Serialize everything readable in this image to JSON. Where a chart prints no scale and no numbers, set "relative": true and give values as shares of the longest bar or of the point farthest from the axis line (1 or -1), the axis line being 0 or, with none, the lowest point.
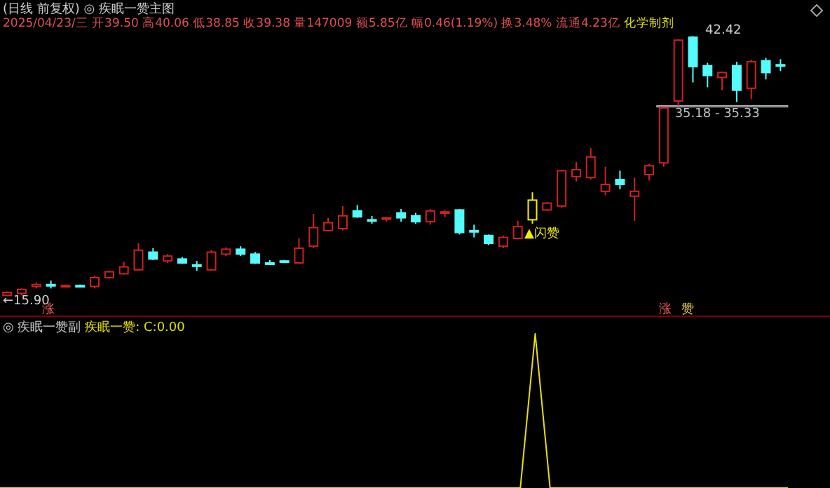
{
  "chart_data": [
    {
      "type": "candlestick",
      "title": "(日线 前复权)",
      "subtitle": "◎ 疾眠一赞主图",
      "categories": [
        null,
        null,
        null,
        null,
        null,
        null,
        null,
        null,
        null,
        null,
        null,
        null,
        null,
        null,
        null,
        null,
        null,
        null,
        null,
        null,
        null,
        null,
        null,
        null,
        null,
        null,
        null,
        null,
        null,
        null,
        null,
        null,
        null,
        null,
        null,
        null,
        null,
        null,
        null,
        null,
        null,
        null,
        null,
        null,
        null,
        null,
        null,
        null,
        null,
        null,
        null,
        null,
        null,
        null
      ],
      "ohlc": [
        [
          16.0,
          16.4,
          15.9,
          16.3
        ],
        [
          16.2,
          16.7,
          16.0,
          16.6
        ],
        [
          16.9,
          17.3,
          16.7,
          17.1
        ],
        [
          17.1,
          17.5,
          16.7,
          17.1
        ],
        [
          17.0,
          17.1,
          16.9,
          17.0
        ],
        [
          17.0,
          17.1,
          16.9,
          17.0
        ],
        [
          16.9,
          18.0,
          16.7,
          17.8
        ],
        [
          17.8,
          18.5,
          17.7,
          18.4
        ],
        [
          18.2,
          19.4,
          18.1,
          18.9
        ],
        [
          18.6,
          21.3,
          18.5,
          20.6
        ],
        [
          20.4,
          20.8,
          19.6,
          19.7
        ],
        [
          19.5,
          20.2,
          19.3,
          20.0
        ],
        [
          19.7,
          19.9,
          19.2,
          19.3
        ],
        [
          19.1,
          19.5,
          18.5,
          19.1
        ],
        [
          18.6,
          20.6,
          18.5,
          20.4
        ],
        [
          20.2,
          20.9,
          20.0,
          20.7
        ],
        [
          20.7,
          21.0,
          20.0,
          20.2
        ],
        [
          20.2,
          20.4,
          19.2,
          19.3
        ],
        [
          19.3,
          19.6,
          19.1,
          19.3
        ],
        [
          19.5,
          19.6,
          19.3,
          19.4
        ],
        [
          19.3,
          21.8,
          19.2,
          20.8
        ],
        [
          21.0,
          24.3,
          20.8,
          22.9
        ],
        [
          22.6,
          23.9,
          22.5,
          23.4
        ],
        [
          22.8,
          25.1,
          22.6,
          24.1
        ],
        [
          24.6,
          25.2,
          23.9,
          24.0
        ],
        [
          23.7,
          24.1,
          23.3,
          23.7
        ],
        [
          23.8,
          24.0,
          23.5,
          23.9
        ],
        [
          24.4,
          24.8,
          23.5,
          23.9
        ],
        [
          24.1,
          24.4,
          23.3,
          23.5
        ],
        [
          23.5,
          24.8,
          23.2,
          24.6
        ],
        [
          24.4,
          24.7,
          24.0,
          24.5
        ],
        [
          24.7,
          24.8,
          22.2,
          22.4
        ],
        [
          22.6,
          23.2,
          21.9,
          22.6
        ],
        [
          22.1,
          22.2,
          21.1,
          21.3
        ],
        [
          21.0,
          22.1,
          20.8,
          21.9
        ],
        [
          21.8,
          23.6,
          21.7,
          23.0
        ],
        [
          23.7,
          26.5,
          23.3,
          25.7
        ],
        [
          24.7,
          25.5,
          24.6,
          25.4
        ],
        [
          25.1,
          28.8,
          24.9,
          28.7
        ],
        [
          28.1,
          29.6,
          27.6,
          28.8
        ],
        [
          28.0,
          31.0,
          27.8,
          30.1
        ],
        [
          26.6,
          29.1,
          26.2,
          27.3
        ],
        [
          27.8,
          28.7,
          26.8,
          27.3
        ],
        [
          26.1,
          28.0,
          23.6,
          26.6
        ],
        [
          28.3,
          29.4,
          27.7,
          29.2
        ],
        [
          29.5,
          35.18,
          29.1,
          35.1
        ],
        [
          35.8,
          42.1,
          35.33,
          42.0
        ],
        [
          42.3,
          42.42,
          37.7,
          39.3
        ],
        [
          39.4,
          39.7,
          37.2,
          38.4
        ],
        [
          38.2,
          38.8,
          36.9,
          38.7
        ],
        [
          39.4,
          39.8,
          35.7,
          36.9
        ],
        [
          37.1,
          40.0,
          36.0,
          39.8
        ],
        [
          39.9,
          40.2,
          38.0,
          38.7
        ],
        [
          39.5,
          40.06,
          38.85,
          39.38
        ]
      ],
      "colors": [
        "#d02020",
        "#d02020",
        "#d02020",
        "#54fcfc",
        "#d02020",
        "#54fcfc",
        "#d02020",
        "#d02020",
        "#d02020",
        "#d02020",
        "#54fcfc",
        "#d02020",
        "#54fcfc",
        "#54fcfc",
        "#d02020",
        "#d02020",
        "#54fcfc",
        "#54fcfc",
        "#54fcfc",
        "#54fcfc",
        "#d02020",
        "#d02020",
        "#d02020",
        "#d02020",
        "#54fcfc",
        "#54fcfc",
        "#d02020",
        "#54fcfc",
        "#54fcfc",
        "#d02020",
        "#d02020",
        "#54fcfc",
        "#54fcfc",
        "#54fcfc",
        "#d02020",
        "#d02020",
        "#f0f000",
        "#d02020",
        "#d02020",
        "#d02020",
        "#d02020",
        "#d02020",
        "#54fcfc",
        "#d02020",
        "#d02020",
        "#d02020",
        "#d02020",
        "#54fcfc",
        "#54fcfc",
        "#d02020",
        "#54fcfc",
        "#d02020",
        "#54fcfc",
        "#54fcfc"
      ],
      "bands": [
        {
          "axis": "y",
          "from": 35.18,
          "to": 35.33,
          "label": "35.18 - 35.33",
          "color": "#c0c0c0"
        }
      ],
      "annotations": [
        "2025/04/23/三 开39.50 高40.06 低38.85 收39.38 量147009 额5.85亿 幅0.46(1.19%) 换3.48% 流通4.23亿",
        "化学制剂",
        "42.42",
        "←15.90",
        "▲闪赞",
        "涨",
        "涨",
        "赞"
      ]
    },
    {
      "type": "line",
      "title": "◎ 疾眠一赞副",
      "relative": true,
      "categories": [
        null,
        null,
        null,
        null,
        null,
        null,
        null,
        null,
        null,
        null,
        null,
        null,
        null,
        null,
        null,
        null,
        null,
        null,
        null,
        null,
        null,
        null,
        null,
        null,
        null,
        null,
        null,
        null,
        null,
        null,
        null,
        null,
        null,
        null,
        null,
        null,
        null,
        null,
        null,
        null,
        null,
        null,
        null,
        null,
        null,
        null,
        null,
        null,
        null,
        null,
        null,
        null,
        null,
        null
      ],
      "series": [
        {
          "name": "疾眠一赞:",
          "color": "#e8e000",
          "values": [
            0,
            0,
            0,
            0,
            0,
            0,
            0,
            0,
            0,
            0,
            0,
            0,
            0,
            0,
            0,
            0,
            0,
            0,
            0,
            0,
            0,
            0,
            0,
            0,
            0,
            0,
            0,
            0,
            0,
            0,
            0,
            0,
            0,
            0,
            0,
            0,
            1,
            0,
            0,
            0,
            0,
            0,
            0,
            0,
            0,
            0,
            0,
            0,
            0,
            0,
            0,
            0,
            0,
            0
          ]
        }
      ],
      "annotations": [
        "C:0.00"
      ]
    }
  ]
}
